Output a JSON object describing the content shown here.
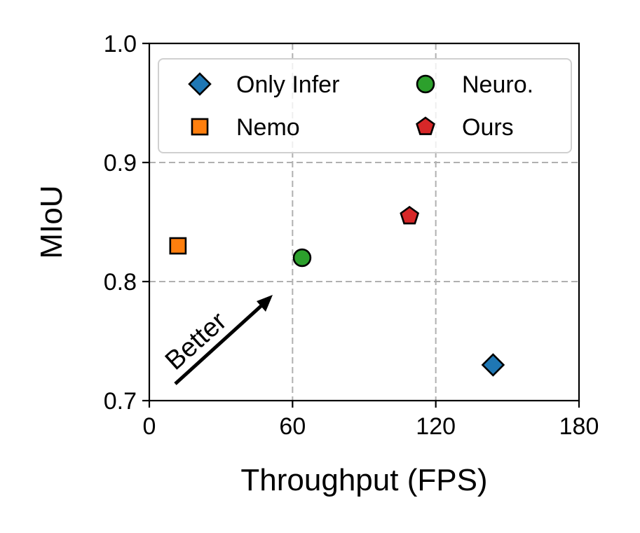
{
  "chart_data": {
    "type": "scatter",
    "xlabel": "Throughput (FPS)",
    "ylabel": "MIoU",
    "xlim": [
      0,
      180
    ],
    "ylim": [
      0.7,
      1.0
    ],
    "xticks": [
      "0",
      "60",
      "120",
      "180"
    ],
    "yticks": [
      "0.7",
      "0.8",
      "0.9",
      "1.0"
    ],
    "grid": true,
    "legend_position": "top",
    "series": [
      {
        "name": "Only Infer",
        "marker": "diamond",
        "color": "#1f77b4",
        "x": 144,
        "y": 0.73
      },
      {
        "name": "Nemo",
        "marker": "square",
        "color": "#ff7f0e",
        "x": 12,
        "y": 0.83
      },
      {
        "name": "Neuro.",
        "marker": "circle",
        "color": "#2ca02c",
        "x": 64,
        "y": 0.82
      },
      {
        "name": "Ours",
        "marker": "pentagon",
        "color": "#d62728",
        "x": 109,
        "y": 0.855
      }
    ],
    "annotation": {
      "text": "Better"
    }
  }
}
